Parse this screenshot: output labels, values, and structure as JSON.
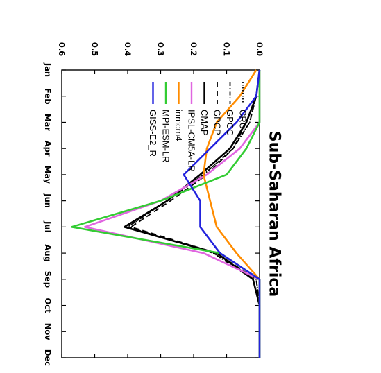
{
  "chart_data": {
    "type": "line",
    "title": "Sub-Saharan Africa",
    "orientation": "rotated-90-clockwise",
    "xlabel": "",
    "ylabel": "",
    "categories": [
      "Jan",
      "Feb",
      "Mar",
      "Apr",
      "May",
      "Jun",
      "Jul",
      "Aug",
      "Sep",
      "Oct",
      "Nov",
      "Dec"
    ],
    "ylim": [
      0,
      0.6
    ],
    "yticks": [
      "0.0",
      "0.1",
      "0.2",
      "0.3",
      "0.4",
      "0.5",
      "0.6"
    ],
    "legend_position": "top-left",
    "grid": false,
    "series": [
      {
        "name": "CRU",
        "color": "#000000",
        "dash": "dotted",
        "values": [
          0.0,
          0.01,
          0.03,
          0.08,
          0.17,
          0.28,
          0.4,
          0.14,
          0.01,
          0.0,
          0.0,
          0.0
        ]
      },
      {
        "name": "GPCC",
        "color": "#000000",
        "dash": "dashdot",
        "values": [
          0.0,
          0.01,
          0.04,
          0.08,
          0.17,
          0.28,
          0.4,
          0.14,
          0.02,
          0.0,
          0.0,
          0.0
        ]
      },
      {
        "name": "GPCP",
        "color": "#000000",
        "dash": "dashed",
        "values": [
          0.0,
          0.01,
          0.03,
          0.08,
          0.16,
          0.27,
          0.39,
          0.13,
          0.01,
          0.0,
          0.0,
          0.0
        ]
      },
      {
        "name": "CMAP",
        "color": "#000000",
        "dash": "solid",
        "values": [
          0.0,
          0.01,
          0.04,
          0.09,
          0.18,
          0.28,
          0.41,
          0.13,
          0.02,
          0.0,
          0.0,
          0.0
        ]
      },
      {
        "name": "IPSL-CM5A-LR",
        "color": "#e066e0",
        "dash": "solid",
        "values": [
          0.0,
          0.0,
          0.0,
          0.06,
          0.16,
          0.3,
          0.53,
          0.17,
          0.0,
          0.0,
          0.0,
          0.0
        ]
      },
      {
        "name": "inmcm4",
        "color": "#ff8c00",
        "dash": "solid",
        "values": [
          0.01,
          0.06,
          0.13,
          0.16,
          0.17,
          0.15,
          0.13,
          0.07,
          0.0,
          0.0,
          0.0,
          0.0
        ]
      },
      {
        "name": "MPI-ESM-LR",
        "color": "#33cc33",
        "dash": "solid",
        "values": [
          0.0,
          0.0,
          0.0,
          0.04,
          0.1,
          0.3,
          0.57,
          0.12,
          0.0,
          0.0,
          0.0,
          0.0
        ]
      },
      {
        "name": "GISS-E2_R",
        "color": "#2222dd",
        "dash": "solid",
        "values": [
          0.0,
          0.01,
          0.07,
          0.15,
          0.23,
          0.18,
          0.18,
          0.12,
          0.0,
          0.0,
          0.0,
          0.0
        ]
      }
    ]
  }
}
